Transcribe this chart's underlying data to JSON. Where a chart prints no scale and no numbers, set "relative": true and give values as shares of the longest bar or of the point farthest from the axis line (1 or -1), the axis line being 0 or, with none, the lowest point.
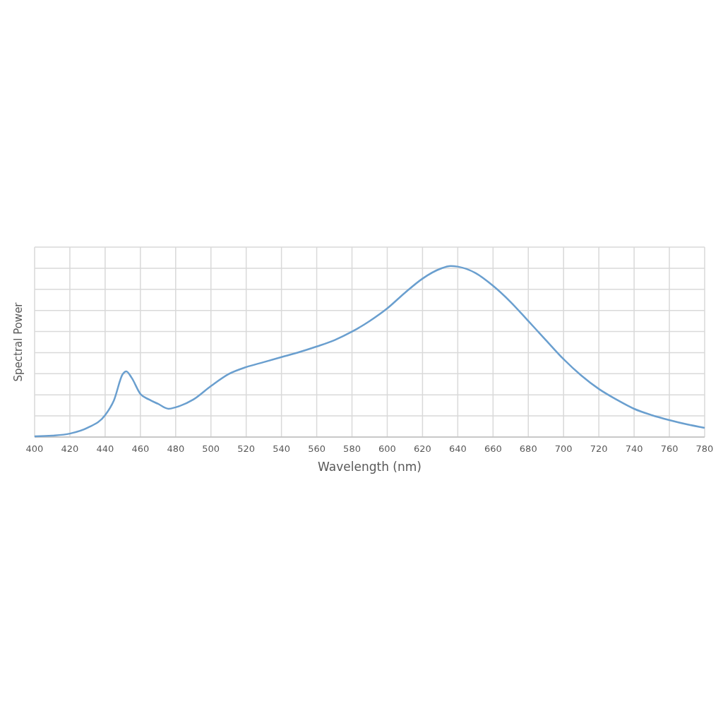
{
  "chart_data": {
    "type": "line",
    "relative": true,
    "xlabel": "Wavelength (nm)",
    "ylabel": "Spectral Power",
    "xlim": [
      400,
      780
    ],
    "xticks": [
      400,
      420,
      440,
      460,
      480,
      500,
      520,
      540,
      560,
      580,
      600,
      620,
      640,
      660,
      680,
      700,
      720,
      740,
      760,
      780
    ],
    "grid": true,
    "marker": "none",
    "line_style": "solid",
    "series": [
      {
        "color": "#6a9fcf",
        "x": [
          400,
          410,
          420,
          430,
          440,
          445,
          450,
          452,
          455,
          460,
          465,
          470,
          476,
          480,
          490,
          500,
          510,
          520,
          530,
          540,
          550,
          560,
          570,
          580,
          590,
          600,
          610,
          620,
          630,
          636,
          640,
          650,
          660,
          670,
          680,
          690,
          700,
          710,
          720,
          730,
          740,
          750,
          760,
          770,
          780
        ],
        "values": [
          0.004,
          0.008,
          0.02,
          0.054,
          0.128,
          0.215,
          0.368,
          0.384,
          0.347,
          0.252,
          0.219,
          0.194,
          0.165,
          0.174,
          0.219,
          0.298,
          0.368,
          0.409,
          0.438,
          0.467,
          0.496,
          0.529,
          0.566,
          0.616,
          0.678,
          0.752,
          0.843,
          0.926,
          0.983,
          1,
          0.996,
          0.959,
          0.884,
          0.789,
          0.678,
          0.566,
          0.455,
          0.36,
          0.281,
          0.219,
          0.165,
          0.128,
          0.099,
          0.074,
          0.054
        ]
      }
    ]
  }
}
